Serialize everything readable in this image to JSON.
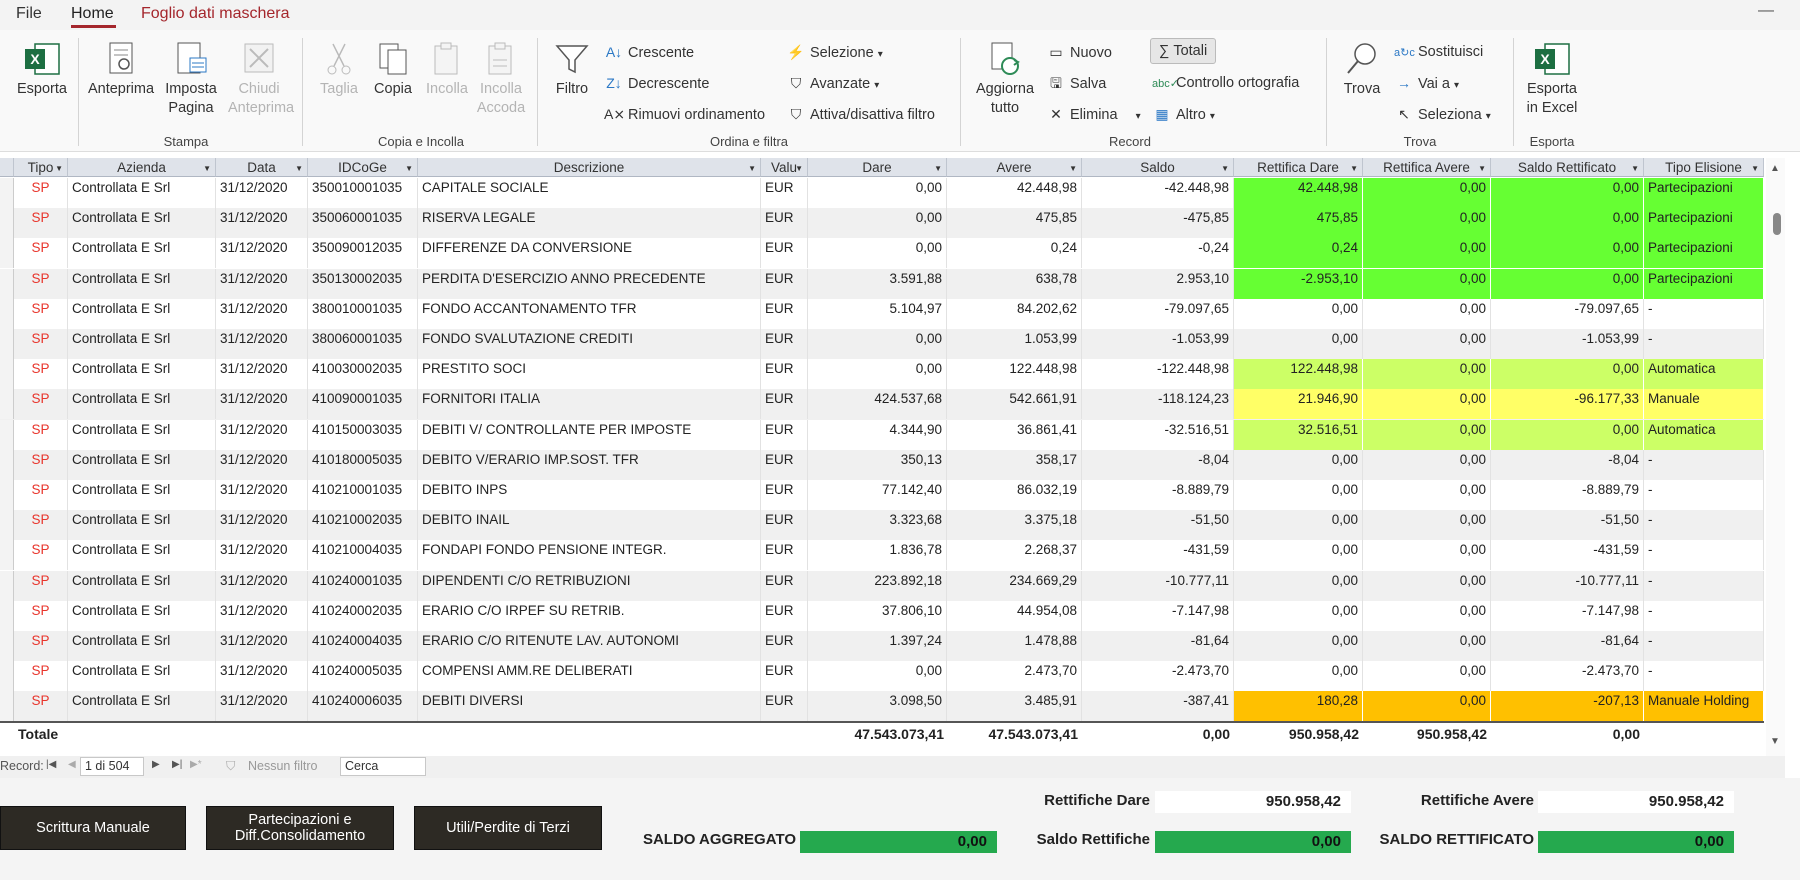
{
  "menu": {
    "file": "File",
    "home": "Home",
    "foglio": "Foglio dati maschera"
  },
  "ribbon": {
    "esporta": "Esporta",
    "anteprima": "Anteprima",
    "imposta_pagina": "Imposta Pagina",
    "chiudi_anteprima": "Chiudi Anteprima",
    "taglia": "Taglia",
    "copia": "Copia",
    "incolla": "Incolla",
    "incolla_accoda": "Incolla Accoda",
    "filtro": "Filtro",
    "crescente": "Crescente",
    "decrescente": "Decrescente",
    "rimuovi": "Rimuovi ordinamento",
    "selezione": "Selezione",
    "avanzate": "Avanzate",
    "attiva": "Attiva/disattiva filtro",
    "aggiorna": "Aggiorna tutto",
    "nuovo": "Nuovo",
    "salva": "Salva",
    "elimina": "Elimina",
    "totali": "Totali",
    "controllo": "Controllo ortografia",
    "altro": "Altro",
    "trova": "Trova",
    "sostituisci": "Sostituisci",
    "vai": "Vai a",
    "seleziona": "Seleziona",
    "esporta_excel": "Esporta in Excel",
    "groups": {
      "stampa": "Stampa",
      "copia_incolla": "Copia e Incolla",
      "ordina": "Ordina e filtra",
      "record": "Record",
      "trova": "Trova",
      "esporta": "Esporta"
    }
  },
  "columns": [
    "Tipo",
    "Azienda",
    "Data",
    "IDCoGe",
    "Descrizione",
    "Valu",
    "Dare",
    "Avere",
    "Saldo",
    "Rettifica Dare",
    "Rettifica Avere",
    "Saldo Rettificato",
    "Tipo Elisione"
  ],
  "rows": [
    {
      "tipo": "SP",
      "azienda": "Controllata E Srl",
      "data": "31/12/2020",
      "id": "350010001035",
      "desc": "CAPITALE SOCIALE",
      "valu": "EUR",
      "dare": "0,00",
      "avere": "42.448,98",
      "saldo": "-42.448,98",
      "rdare": "42.448,98",
      "ravere": "0,00",
      "srett": "0,00",
      "elis": "Partecipazioni",
      "color": "#66ff33"
    },
    {
      "tipo": "SP",
      "azienda": "Controllata E Srl",
      "data": "31/12/2020",
      "id": "350060001035",
      "desc": "RISERVA LEGALE",
      "valu": "EUR",
      "dare": "0,00",
      "avere": "475,85",
      "saldo": "-475,85",
      "rdare": "475,85",
      "ravere": "0,00",
      "srett": "0,00",
      "elis": "Partecipazioni",
      "color": "#66ff33"
    },
    {
      "tipo": "SP",
      "azienda": "Controllata E Srl",
      "data": "31/12/2020",
      "id": "350090012035",
      "desc": "DIFFERENZE DA CONVERSIONE",
      "valu": "EUR",
      "dare": "0,00",
      "avere": "0,24",
      "saldo": "-0,24",
      "rdare": "0,24",
      "ravere": "0,00",
      "srett": "0,00",
      "elis": "Partecipazioni",
      "color": "#66ff33"
    },
    {
      "tipo": "SP",
      "azienda": "Controllata E Srl",
      "data": "31/12/2020",
      "id": "350130002035",
      "desc": "PERDITA D'ESERCIZIO ANNO PRECEDENTE",
      "valu": "EUR",
      "dare": "3.591,88",
      "avere": "638,78",
      "saldo": "2.953,10",
      "rdare": "-2.953,10",
      "ravere": "0,00",
      "srett": "0,00",
      "elis": "Partecipazioni",
      "color": "#66ff33"
    },
    {
      "tipo": "SP",
      "azienda": "Controllata E Srl",
      "data": "31/12/2020",
      "id": "380010001035",
      "desc": "FONDO ACCANTONAMENTO TFR",
      "valu": "EUR",
      "dare": "5.104,97",
      "avere": "84.202,62",
      "saldo": "-79.097,65",
      "rdare": "0,00",
      "ravere": "0,00",
      "srett": "-79.097,65",
      "elis": "-",
      "color": ""
    },
    {
      "tipo": "SP",
      "azienda": "Controllata E Srl",
      "data": "31/12/2020",
      "id": "380060001035",
      "desc": "FONDO SVALUTAZIONE CREDITI",
      "valu": "EUR",
      "dare": "0,00",
      "avere": "1.053,99",
      "saldo": "-1.053,99",
      "rdare": "0,00",
      "ravere": "0,00",
      "srett": "-1.053,99",
      "elis": "-",
      "color": ""
    },
    {
      "tipo": "SP",
      "azienda": "Controllata E Srl",
      "data": "31/12/2020",
      "id": "410030002035",
      "desc": "PRESTITO SOCI",
      "valu": "EUR",
      "dare": "0,00",
      "avere": "122.448,98",
      "saldo": "-122.448,98",
      "rdare": "122.448,98",
      "ravere": "0,00",
      "srett": "0,00",
      "elis": "Automatica",
      "color": "#ccff66"
    },
    {
      "tipo": "SP",
      "azienda": "Controllata E Srl",
      "data": "31/12/2020",
      "id": "410090001035",
      "desc": "FORNITORI ITALIA",
      "valu": "EUR",
      "dare": "424.537,68",
      "avere": "542.661,91",
      "saldo": "-118.124,23",
      "rdare": "21.946,90",
      "ravere": "0,00",
      "srett": "-96.177,33",
      "elis": "Manuale",
      "color": "#ffff66"
    },
    {
      "tipo": "SP",
      "azienda": "Controllata E Srl",
      "data": "31/12/2020",
      "id": "410150003035",
      "desc": "DEBITI V/ CONTROLLANTE PER IMPOSTE",
      "valu": "EUR",
      "dare": "4.344,90",
      "avere": "36.861,41",
      "saldo": "-32.516,51",
      "rdare": "32.516,51",
      "ravere": "0,00",
      "srett": "0,00",
      "elis": "Automatica",
      "color": "#ccff66"
    },
    {
      "tipo": "SP",
      "azienda": "Controllata E Srl",
      "data": "31/12/2020",
      "id": "410180005035",
      "desc": "DEBITO V/ERARIO IMP.SOST. TFR",
      "valu": "EUR",
      "dare": "350,13",
      "avere": "358,17",
      "saldo": "-8,04",
      "rdare": "0,00",
      "ravere": "0,00",
      "srett": "-8,04",
      "elis": "-",
      "color": ""
    },
    {
      "tipo": "SP",
      "azienda": "Controllata E Srl",
      "data": "31/12/2020",
      "id": "410210001035",
      "desc": "DEBITO INPS",
      "valu": "EUR",
      "dare": "77.142,40",
      "avere": "86.032,19",
      "saldo": "-8.889,79",
      "rdare": "0,00",
      "ravere": "0,00",
      "srett": "-8.889,79",
      "elis": "-",
      "color": ""
    },
    {
      "tipo": "SP",
      "azienda": "Controllata E Srl",
      "data": "31/12/2020",
      "id": "410210002035",
      "desc": "DEBITO INAIL",
      "valu": "EUR",
      "dare": "3.323,68",
      "avere": "3.375,18",
      "saldo": "-51,50",
      "rdare": "0,00",
      "ravere": "0,00",
      "srett": "-51,50",
      "elis": "-",
      "color": ""
    },
    {
      "tipo": "SP",
      "azienda": "Controllata E Srl",
      "data": "31/12/2020",
      "id": "410210004035",
      "desc": "FONDAPI FONDO PENSIONE INTEGR.",
      "valu": "EUR",
      "dare": "1.836,78",
      "avere": "2.268,37",
      "saldo": "-431,59",
      "rdare": "0,00",
      "ravere": "0,00",
      "srett": "-431,59",
      "elis": "-",
      "color": ""
    },
    {
      "tipo": "SP",
      "azienda": "Controllata E Srl",
      "data": "31/12/2020",
      "id": "410240001035",
      "desc": "DIPENDENTI C/O RETRIBUZIONI",
      "valu": "EUR",
      "dare": "223.892,18",
      "avere": "234.669,29",
      "saldo": "-10.777,11",
      "rdare": "0,00",
      "ravere": "0,00",
      "srett": "-10.777,11",
      "elis": "-",
      "color": ""
    },
    {
      "tipo": "SP",
      "azienda": "Controllata E Srl",
      "data": "31/12/2020",
      "id": "410240002035",
      "desc": "ERARIO C/O IRPEF SU RETRIB.",
      "valu": "EUR",
      "dare": "37.806,10",
      "avere": "44.954,08",
      "saldo": "-7.147,98",
      "rdare": "0,00",
      "ravere": "0,00",
      "srett": "-7.147,98",
      "elis": "-",
      "color": ""
    },
    {
      "tipo": "SP",
      "azienda": "Controllata E Srl",
      "data": "31/12/2020",
      "id": "410240004035",
      "desc": "ERARIO C/O RITENUTE LAV. AUTONOMI",
      "valu": "EUR",
      "dare": "1.397,24",
      "avere": "1.478,88",
      "saldo": "-81,64",
      "rdare": "0,00",
      "ravere": "0,00",
      "srett": "-81,64",
      "elis": "-",
      "color": ""
    },
    {
      "tipo": "SP",
      "azienda": "Controllata E Srl",
      "data": "31/12/2020",
      "id": "410240005035",
      "desc": "COMPENSI AMM.RE DELIBERATI",
      "valu": "EUR",
      "dare": "0,00",
      "avere": "2.473,70",
      "saldo": "-2.473,70",
      "rdare": "0,00",
      "ravere": "0,00",
      "srett": "-2.473,70",
      "elis": "-",
      "color": ""
    },
    {
      "tipo": "SP",
      "azienda": "Controllata E Srl",
      "data": "31/12/2020",
      "id": "410240006035",
      "desc": "DEBITI DIVERSI",
      "valu": "EUR",
      "dare": "3.098,50",
      "avere": "3.485,91",
      "saldo": "-387,41",
      "rdare": "180,28",
      "ravere": "0,00",
      "srett": "-207,13",
      "elis": "Manuale Holding",
      "color": "#ffc000"
    }
  ],
  "totals": {
    "label": "Totale",
    "dare": "47.543.073,41",
    "avere": "47.543.073,41",
    "saldo": "0,00",
    "rdare": "950.958,42",
    "ravere": "950.958,42",
    "srett": "0,00"
  },
  "nav": {
    "record": "Record:",
    "pos": "1 di 504",
    "filter": "Nessun filtro",
    "search": "Cerca"
  },
  "buttons": {
    "scrittura": "Scrittura Manuale",
    "partecipazioni_1": "Partecipazioni e",
    "partecipazioni_2": "Diff.Consolidamento",
    "utili": "Utili/Perdite di Terzi"
  },
  "summary": {
    "rett_dare_label": "Rettifiche Dare",
    "rett_dare": "950.958,42",
    "rett_avere_label": "Rettifiche Avere",
    "rett_avere": "950.958,42",
    "saldo_aggr_label": "SALDO AGGREGATO",
    "saldo_aggr": "0,00",
    "saldo_rett_label": "Saldo Rettifiche",
    "saldo_rett": "0,00",
    "saldo_rettificato_label": "SALDO RETTIFICATO",
    "saldo_rettificato": "0,00"
  }
}
